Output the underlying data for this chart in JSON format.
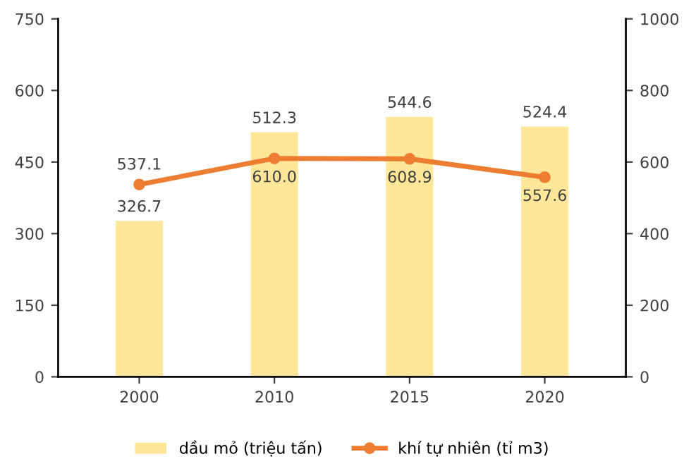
{
  "chart_data": {
    "type": "bar",
    "categories": [
      "2000",
      "2010",
      "2015",
      "2020"
    ],
    "series": [
      {
        "name": "dầu mỏ (triệu tấn)",
        "color": "#ffe699",
        "values": [
          326.7,
          512.3,
          544.6,
          524.4
        ]
      },
      {
        "name": "khí tự nhiên (tỉ m3)",
        "type": "line",
        "axis": "y2",
        "color": "#ed7d31",
        "marker": "circle",
        "values": [
          537.1,
          610.0,
          608.9,
          557.6
        ],
        "value_labels": [
          "537.1",
          "610.0",
          "608.9",
          "557.6"
        ]
      }
    ],
    "ylim": [
      0,
      750
    ],
    "yticks": [
      0,
      150,
      300,
      450,
      600,
      750
    ],
    "y2lim": [
      0,
      1000
    ],
    "y2ticks": [
      0,
      200,
      400,
      600,
      800,
      1000
    ],
    "data_labels": true,
    "grid": false,
    "legend": "bottom"
  }
}
